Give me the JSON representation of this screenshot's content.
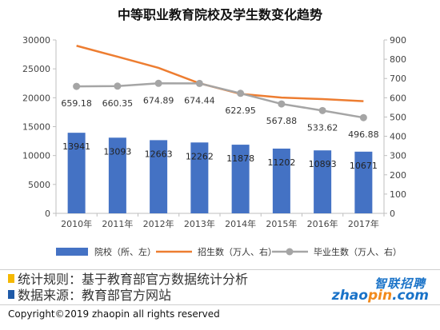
{
  "chart_data": {
    "type": "bar+line",
    "title": "中等职业教育院校及学生数变化趋势",
    "categories": [
      "2010年",
      "2011年",
      "2012年",
      "2013年",
      "2014年",
      "2015年",
      "2016年",
      "2017年"
    ],
    "y_left": {
      "ylim": [
        0,
        30000
      ],
      "ticks": [
        0,
        5000,
        10000,
        15000,
        20000,
        25000,
        30000
      ],
      "tick_labels": [
        "0",
        "5000",
        "10000",
        "15000",
        "20000",
        "25000",
        "30000"
      ]
    },
    "y_right": {
      "ylim": [
        0,
        900
      ],
      "ticks": [
        0,
        100,
        200,
        300,
        400,
        500,
        600,
        700,
        800,
        900
      ],
      "tick_labels": [
        "0",
        "100",
        "200",
        "300",
        "400",
        "500",
        "600",
        "700",
        "800",
        "900"
      ]
    },
    "grid": false,
    "legend_position": "bottom",
    "series": [
      {
        "name": "院校（所、左）",
        "kind": "bar",
        "axis": "left",
        "color": "#4472c4",
        "values": [
          13941,
          13093,
          12663,
          12262,
          11878,
          11202,
          10893,
          10671
        ],
        "labels": [
          "13941",
          "13093",
          "12663",
          "12262",
          "11878",
          "11202",
          "10893",
          "10671"
        ]
      },
      {
        "name": "招生数（万人、右）",
        "kind": "line",
        "axis": "right",
        "color": "#ed7d31",
        "values": [
          870,
          813,
          755,
          675,
          620,
          601,
          593,
          582
        ]
      },
      {
        "name": "毕业生数（万人、右）",
        "kind": "line",
        "axis": "right",
        "color": "#a5a5a5",
        "values": [
          659.18,
          660.35,
          674.89,
          674.44,
          622.95,
          567.88,
          533.62,
          496.88
        ],
        "labels": [
          "659.18",
          "660.35",
          "674.89",
          "674.44",
          "622.95",
          "567.88",
          "533.62",
          "496.88"
        ]
      }
    ]
  },
  "footer": {
    "note1": "统计规则：基于教育部官方数据统计分析",
    "note1_color": "#f5b800",
    "note2": "数据来源：教育部官方网站",
    "note2_color": "#1f5aa8",
    "brand_cn": "智联招聘",
    "brand_en_a": "zhao",
    "brand_en_b": "pin",
    "brand_en_c": ".com",
    "copyright": "Copyright©2019 zhaopin all rights reserved"
  }
}
